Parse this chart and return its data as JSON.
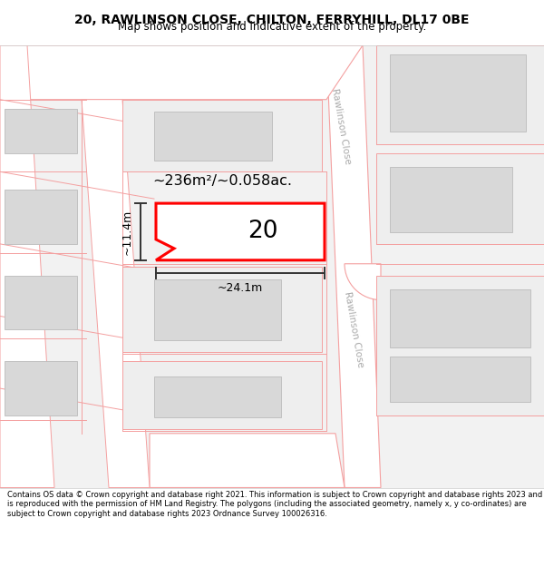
{
  "title_line1": "20, RAWLINSON CLOSE, CHILTON, FERRYHILL, DL17 0BE",
  "title_line2": "Map shows position and indicative extent of the property.",
  "footer_text": "Contains OS data © Crown copyright and database right 2021. This information is subject to Crown copyright and database rights 2023 and is reproduced with the permission of HM Land Registry. The polygons (including the associated geometry, namely x, y co-ordinates) are subject to Crown copyright and database rights 2023 Ordnance Survey 100026316.",
  "road_label_top": "Rawlinson Close",
  "road_label_bottom": "Rawlinson Close",
  "plot_number": "20",
  "area_label": "~236m²/~0.058ac.",
  "width_label": "~24.1m",
  "height_label": "~11.4m",
  "plot_color": "#ff0000",
  "bldg_fill": "#d8d8d8",
  "bldg_edge": "#bbbbbb",
  "map_bg": "#f8f8f8",
  "pink": "#f4a0a0",
  "pink_light": "#f8c0c0",
  "road_bg": "#ffffff",
  "title_fontsize": 10,
  "subtitle_fontsize": 8.5,
  "footer_fontsize": 6.0
}
